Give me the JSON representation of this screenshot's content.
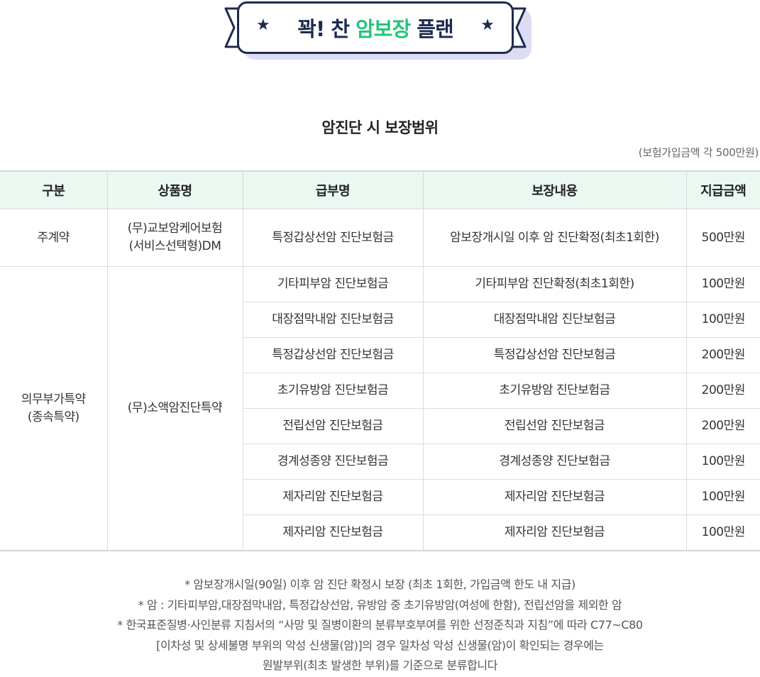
{
  "banner": {
    "part1": "꽉! 찬 ",
    "highlight": "암보장",
    "part2": " 플랜",
    "star_icon": "★"
  },
  "section_title": "암진단 시 보장범위",
  "unit_note": "(보험가입금액 각 500만원)",
  "colors": {
    "accent": "#22c47a",
    "navy": "#1e2b4f",
    "header_bg": "#eaf8f1"
  },
  "table": {
    "headers": [
      "구분",
      "상품명",
      "급부명",
      "보장내용",
      "지급금액"
    ],
    "main": {
      "category": "주계약",
      "product_line1": "(무)교보암케어보험",
      "product_line2": "(서비스선택형)DM",
      "benefit": "특정갑상선암 진단보험금",
      "coverage": "암보장개시일 이후 암 진단확정(최초1회한)",
      "amount": "500만원"
    },
    "rider": {
      "category_line1": "의무부가특약",
      "category_line2": "(종속특약)",
      "product": "(무)소액암진단특약",
      "rows": [
        {
          "benefit": "기타피부암 진단보험금",
          "coverage": "기타피부암 진단확정(최초1회한)",
          "amount": "100만원"
        },
        {
          "benefit": "대장점막내암 진단보험금",
          "coverage": "대장점막내암 진단보험금",
          "amount": "100만원"
        },
        {
          "benefit": "특정갑상선암 진단보험금",
          "coverage": "특정갑상선암 진단보험금",
          "amount": "200만원"
        },
        {
          "benefit": "초기유방암 진단보험금",
          "coverage": "초기유방암 진단보험금",
          "amount": "200만원"
        },
        {
          "benefit": "전립선암 진단보험금",
          "coverage": "전립선암 진단보험금",
          "amount": "200만원"
        },
        {
          "benefit": "경계성종양 진단보험금",
          "coverage": "경계성종양 진단보험금",
          "amount": "100만원"
        },
        {
          "benefit": "제자리암 진단보험금",
          "coverage": "제자리암 진단보험금",
          "amount": "100만원"
        },
        {
          "benefit": "제자리암 진단보험금",
          "coverage": "제자리암 진단보험금",
          "amount": "100만원"
        }
      ]
    }
  },
  "notes": [
    "* 암보장개시일(90일) 이후 암 진단 확정시 보장 (최초 1회한, 가입금액 한도 내 지급)",
    "* 암 : 기타피부암,대장점막내암, 특정갑상선암, 유방암 중 초기유방암(여성에 한함), 전립선암을 제외한 암",
    "* 한국표준질병·사인분류 지침서의 “사망 및 질병이환의 분류부호부여를 위한 선정준칙과 지침”에 따라 C77~C80",
    "[이차성 및 상세불명 부위의 악성 신생물(암)]의 경우 일차성 악성 신생물(암)이 확인되는 경우에는",
    "원발부위(최초 발생한 부위)를 기준으로 분류합니다"
  ]
}
